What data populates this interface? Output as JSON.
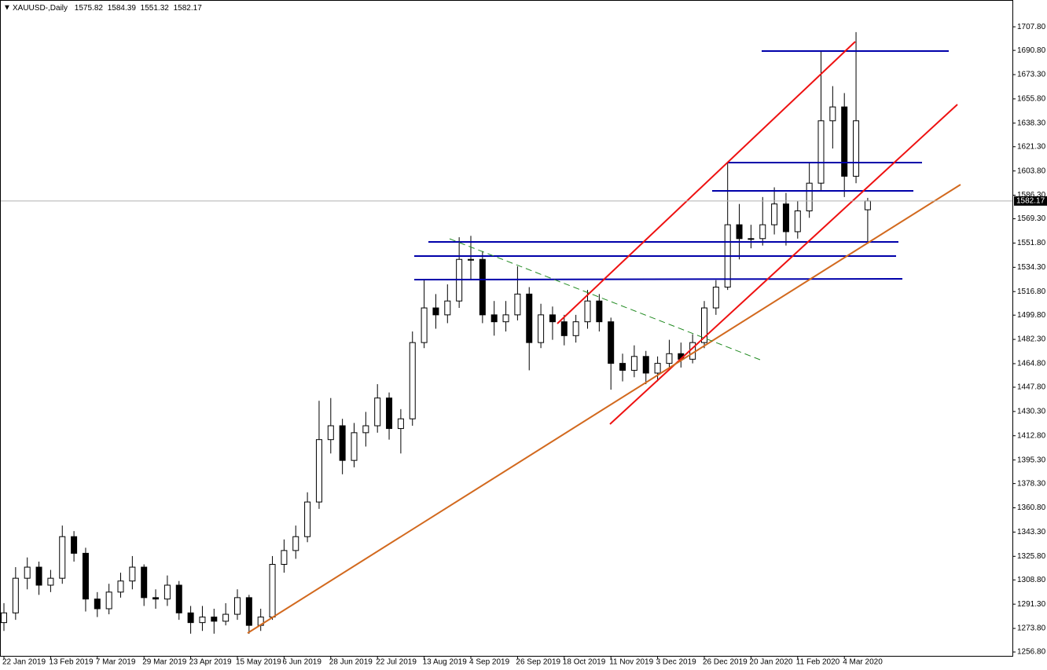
{
  "chart_data": {
    "type": "candlestick",
    "title": "XAUUSD-,Daily",
    "categories": [
      "22 Jan 2019",
      null,
      null,
      null,
      "13 Feb 2019",
      null,
      null,
      null,
      "7 Mar 2019",
      null,
      null,
      null,
      "29 Mar 2019",
      null,
      null,
      null,
      "23 Apr 2019",
      null,
      null,
      null,
      "15 May 2019",
      null,
      null,
      null,
      "6 Jun 2019",
      null,
      null,
      null,
      "28 Jun 2019",
      null,
      null,
      null,
      "22 Jul 2019",
      null,
      null,
      null,
      "13 Aug 2019",
      null,
      null,
      null,
      "4 Sep 2019",
      null,
      null,
      null,
      "26 Sep 2019",
      null,
      null,
      null,
      "18 Oct 2019",
      null,
      null,
      null,
      "11 Nov 2019",
      null,
      null,
      null,
      "3 Dec 2019",
      null,
      null,
      null,
      "26 Dec 2019",
      null,
      null,
      null,
      "20 Jan 2020",
      null,
      null,
      null,
      "11 Feb 2020",
      null,
      null,
      null,
      "4 Mar 2020",
      null,
      null
    ],
    "ohlc": {
      "open": [
        1278,
        1285,
        1310,
        1318,
        1305,
        1310,
        1340,
        1328,
        1295,
        1288,
        1300,
        1308,
        1318,
        1296,
        1295,
        1305,
        1285,
        1278,
        1282,
        1279,
        1284,
        1296,
        1276,
        1282,
        1320,
        1330,
        1340,
        1365,
        1410,
        1420,
        1395,
        1415,
        1420,
        1440,
        1418,
        1425,
        1480,
        1505,
        1500,
        1510,
        1540,
        1540,
        1500,
        1495,
        1500,
        1515,
        1480,
        1500,
        1495,
        1485,
        1495,
        1510,
        1495,
        1465,
        1460,
        1470,
        1458,
        1465,
        1472,
        1468,
        1480,
        1505,
        1520,
        1565,
        1555,
        1555,
        1565,
        1580,
        1560,
        1575,
        1595,
        1640,
        1650,
        1600,
        1575.82
      ],
      "high": [
        1292,
        1318,
        1325,
        1322,
        1316,
        1348,
        1344,
        1332,
        1300,
        1306,
        1314,
        1326,
        1320,
        1302,
        1312,
        1308,
        1290,
        1290,
        1288,
        1292,
        1302,
        1298,
        1288,
        1326,
        1338,
        1348,
        1372,
        1438,
        1440,
        1425,
        1422,
        1430,
        1450,
        1444,
        1432,
        1488,
        1525,
        1515,
        1522,
        1556,
        1557,
        1546,
        1510,
        1510,
        1535,
        1520,
        1508,
        1506,
        1500,
        1500,
        1518,
        1515,
        1498,
        1472,
        1478,
        1474,
        1470,
        1482,
        1480,
        1486,
        1510,
        1525,
        1610,
        1580,
        1565,
        1585,
        1592,
        1588,
        1582,
        1610,
        1690,
        1665,
        1660,
        1704,
        1584.39
      ],
      "low": [
        1272,
        1280,
        1302,
        1298,
        1300,
        1306,
        1322,
        1286,
        1282,
        1284,
        1296,
        1302,
        1290,
        1288,
        1290,
        1280,
        1270,
        1272,
        1270,
        1276,
        1280,
        1270,
        1272,
        1280,
        1314,
        1324,
        1336,
        1360,
        1400,
        1385,
        1390,
        1405,
        1415,
        1410,
        1400,
        1420,
        1476,
        1490,
        1494,
        1505,
        1525,
        1494,
        1485,
        1488,
        1496,
        1460,
        1476,
        1482,
        1478,
        1480,
        1490,
        1488,
        1446,
        1452,
        1455,
        1450,
        1452,
        1460,
        1462,
        1465,
        1476,
        1500,
        1518,
        1540,
        1548,
        1550,
        1558,
        1550,
        1555,
        1570,
        1590,
        1620,
        1585,
        1595,
        1551.32
      ],
      "close": [
        1285,
        1310,
        1318,
        1305,
        1310,
        1340,
        1328,
        1295,
        1288,
        1300,
        1308,
        1318,
        1296,
        1295,
        1305,
        1285,
        1278,
        1282,
        1279,
        1284,
        1296,
        1276,
        1282,
        1320,
        1330,
        1340,
        1365,
        1410,
        1420,
        1395,
        1415,
        1420,
        1440,
        1418,
        1425,
        1480,
        1505,
        1500,
        1510,
        1540,
        1540,
        1500,
        1495,
        1500,
        1515,
        1480,
        1500,
        1495,
        1485,
        1495,
        1510,
        1495,
        1465,
        1460,
        1470,
        1458,
        1465,
        1472,
        1468,
        1480,
        1505,
        1520,
        1565,
        1555,
        1555,
        1565,
        1580,
        1560,
        1575,
        1595,
        1640,
        1650,
        1600,
        1640,
        1582.17
      ]
    },
    "up_color": "#ffffff",
    "down_color": "#000000",
    "ylim": [
      1254,
      1726
    ],
    "yticks": [
      {
        "value": 1707.8,
        "label": "1707.80"
      },
      {
        "value": 1690.8,
        "label": "1690.80"
      },
      {
        "value": 1673.3,
        "label": "1673.30"
      },
      {
        "value": 1655.8,
        "label": "1655.80"
      },
      {
        "value": 1638.3,
        "label": "1638.30"
      },
      {
        "value": 1621.3,
        "label": "1621.30"
      },
      {
        "value": 1603.8,
        "label": "1603.80"
      },
      {
        "value": 1586.3,
        "label": "1586.30"
      },
      {
        "value": 1569.3,
        "label": "1569.30"
      },
      {
        "value": 1551.8,
        "label": "1551.80"
      },
      {
        "value": 1534.3,
        "label": "1534.30"
      },
      {
        "value": 1516.8,
        "label": "1516.80"
      },
      {
        "value": 1499.8,
        "label": "1499.80"
      },
      {
        "value": 1482.3,
        "label": "1482.30"
      },
      {
        "value": 1464.8,
        "label": "1464.80"
      },
      {
        "value": 1447.8,
        "label": "1447.80"
      },
      {
        "value": 1430.3,
        "label": "1430.30"
      },
      {
        "value": 1412.8,
        "label": "1412.80"
      },
      {
        "value": 1395.3,
        "label": "1395.30"
      },
      {
        "value": 1378.3,
        "label": "1378.30"
      },
      {
        "value": 1360.8,
        "label": "1360.80"
      },
      {
        "value": 1343.3,
        "label": "1343.30"
      },
      {
        "value": 1325.8,
        "label": "1325.80"
      },
      {
        "value": 1308.8,
        "label": "1308.80"
      },
      {
        "value": 1291.3,
        "label": "1291.30"
      },
      {
        "value": 1273.8,
        "label": "1273.80"
      },
      {
        "value": 1256.8,
        "label": "1256.80"
      }
    ]
  }
}
